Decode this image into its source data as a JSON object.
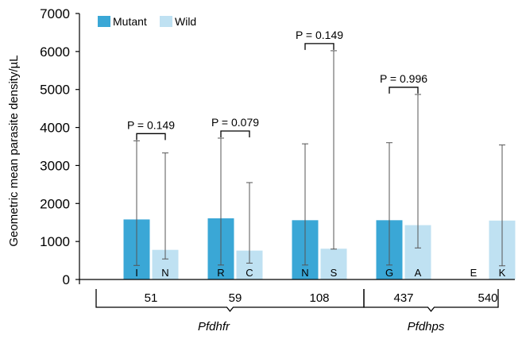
{
  "chart_data": {
    "type": "bar",
    "ylabel": "Geometric mean parasite density/µL",
    "ylim": [
      0,
      7000
    ],
    "y_ticks": [
      "0",
      "1000",
      "2000",
      "3000",
      "4000",
      "5000",
      "6000",
      "7000"
    ],
    "y_tick_values": [
      0,
      1000,
      2000,
      3000,
      4000,
      5000,
      6000,
      7000
    ],
    "legend": {
      "placement": "top-left",
      "labels": [
        "Mutant",
        "Wild"
      ]
    },
    "series_colors": {
      "Mutant": "#3aa7d6",
      "Wild": "#bfe1f2"
    },
    "genes": [
      "Pfdhfr",
      "Pfdhps"
    ],
    "groups": [
      {
        "codon": "51",
        "gene": "Pfdhfr",
        "p_value": "P = 0.149",
        "mutant": {
          "allele": "I",
          "value": 1580,
          "err_low": 370,
          "err_high": 3650
        },
        "wild": {
          "allele": "N",
          "value": 780,
          "err_low": 540,
          "err_high": 3330
        }
      },
      {
        "codon": "59",
        "gene": "Pfdhfr",
        "p_value": "P = 0.079",
        "mutant": {
          "allele": "R",
          "value": 1610,
          "err_low": 380,
          "err_high": 3720
        },
        "wild": {
          "allele": "C",
          "value": 760,
          "err_low": 430,
          "err_high": 2550
        }
      },
      {
        "codon": "108",
        "gene": "Pfdhfr",
        "p_value": "P = 0.149",
        "mutant": {
          "allele": "N",
          "value": 1560,
          "err_low": 380,
          "err_high": 3570
        },
        "wild": {
          "allele": "S",
          "value": 810,
          "err_low": 800,
          "err_high": 6020
        }
      },
      {
        "codon": "437",
        "gene": "Pfdhps",
        "p_value": "P = 0.996",
        "mutant": {
          "allele": "G",
          "value": 1560,
          "err_low": 380,
          "err_high": 3600
        },
        "wild": {
          "allele": "A",
          "value": 1430,
          "err_low": 830,
          "err_high": 4870
        }
      },
      {
        "codon": "540",
        "gene": "Pfdhps",
        "p_value": null,
        "mutant": {
          "allele": "E",
          "value": 0,
          "err_low": null,
          "err_high": null
        },
        "wild": {
          "allele": "K",
          "value": 1550,
          "err_low": 360,
          "err_high": 3540
        }
      }
    ]
  }
}
